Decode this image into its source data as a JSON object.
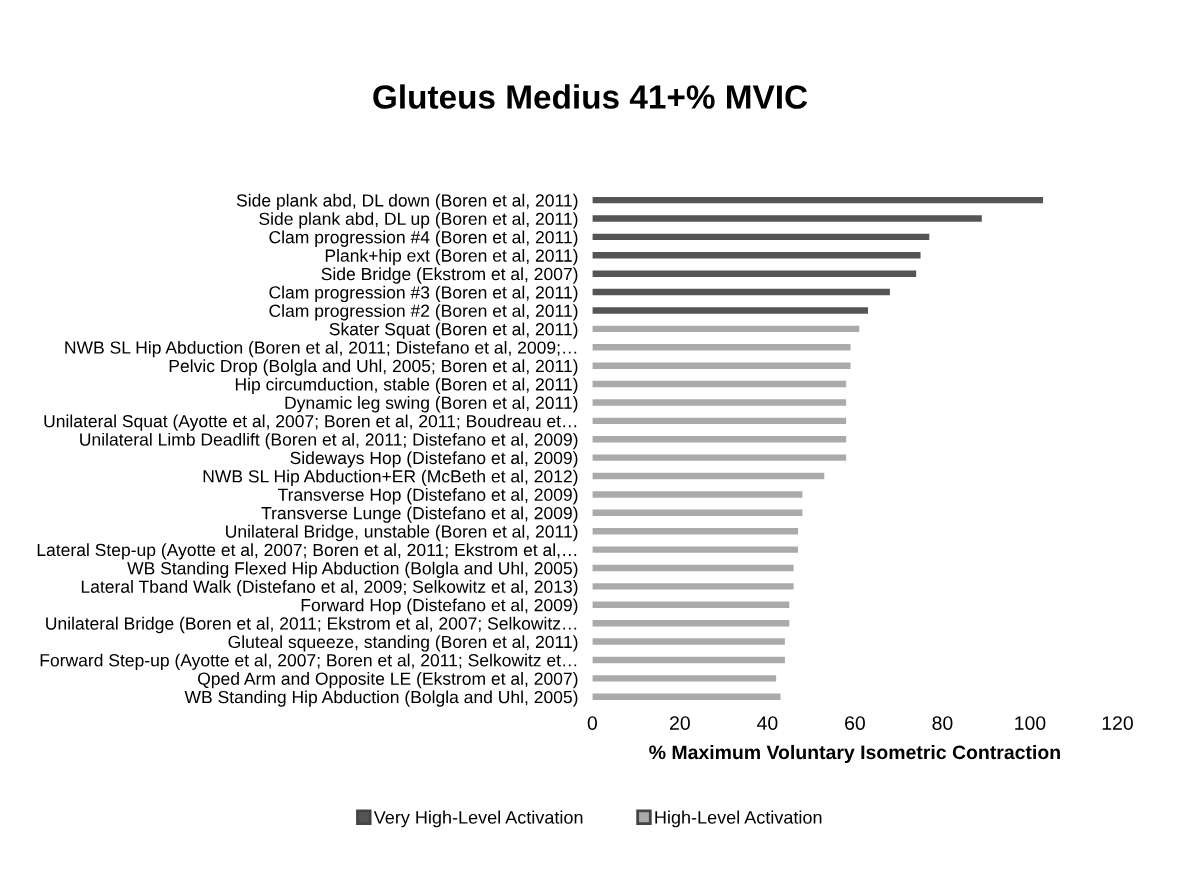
{
  "chart_data": {
    "type": "bar",
    "orientation": "horizontal",
    "title": "Gluteus Medius 41+% MVIC",
    "xlabel": "% Maximum Voluntary Isometric Contraction",
    "categories": [
      "Side plank abd, DL down (Boren et al, 2011)",
      "Side plank abd, DL up (Boren et al, 2011)",
      "Clam progression #4 (Boren et al, 2011)",
      "Plank+hip ext (Boren et al, 2011)",
      "Side Bridge (Ekstrom et al, 2007)",
      "Clam progression #3 (Boren et al, 2011)",
      "Clam progression #2 (Boren et al, 2011)",
      "Skater Squat (Boren et al, 2011)",
      "NWB SL Hip Abduction (Boren et al, 2011; Distefano et al, 2009;…",
      "Pelvic Drop (Bolgla and Uhl, 2005; Boren et al, 2011)",
      "Hip circumduction, stable (Boren et al, 2011)",
      "Dynamic leg swing (Boren et al, 2011)",
      "Unilateral Squat (Ayotte et al, 2007; Boren et al, 2011; Boudreau et…",
      "Unilateral Limb Deadlift (Boren et al, 2011; Distefano et al, 2009)",
      "Sideways Hop (Distefano et al, 2009)",
      "NWB SL Hip Abduction+ER (McBeth et al, 2012)",
      "Transverse Hop (Distefano et al, 2009)",
      "Transverse Lunge (Distefano et al, 2009)",
      "Unilateral Bridge, unstable (Boren et al, 2011)",
      "Lateral Step-up (Ayotte et al, 2007; Boren et al, 2011; Ekstrom et al,…",
      "WB Standing Flexed Hip Abduction (Bolgla and Uhl, 2005)",
      "Lateral Tband Walk (Distefano et al, 2009; Selkowitz et al, 2013)",
      "Forward Hop (Distefano et al, 2009)",
      "Unilateral Bridge (Boren et al, 2011; Ekstrom et al, 2007; Selkowitz…",
      "Gluteal squeeze, standing (Boren et al, 2011)",
      "Forward Step-up (Ayotte et al, 2007; Boren et al, 2011; Selkowitz et…",
      "Qped Arm and Opposite LE (Ekstrom et al, 2007)",
      "WB Standing Hip Abduction (Bolgla and Uhl, 2005)"
    ],
    "series": [
      {
        "name": "Very High-Level Activation",
        "color": "#555555",
        "values": [
          103,
          89,
          77,
          75,
          74,
          68,
          63,
          null,
          null,
          null,
          null,
          null,
          null,
          null,
          null,
          null,
          null,
          null,
          null,
          null,
          null,
          null,
          null,
          null,
          null,
          null,
          null,
          null
        ]
      },
      {
        "name": "High-Level Activation",
        "color": "#aaaaaa",
        "values": [
          null,
          null,
          null,
          null,
          null,
          null,
          null,
          61,
          59,
          59,
          58,
          58,
          58,
          58,
          58,
          53,
          48,
          48,
          47,
          47,
          46,
          46,
          45,
          45,
          44,
          44,
          42,
          43
        ]
      }
    ],
    "xlim": [
      0,
      120
    ],
    "xticks": [
      0,
      20,
      40,
      60,
      80,
      100,
      120
    ],
    "grid": false,
    "legend": "bottom"
  }
}
